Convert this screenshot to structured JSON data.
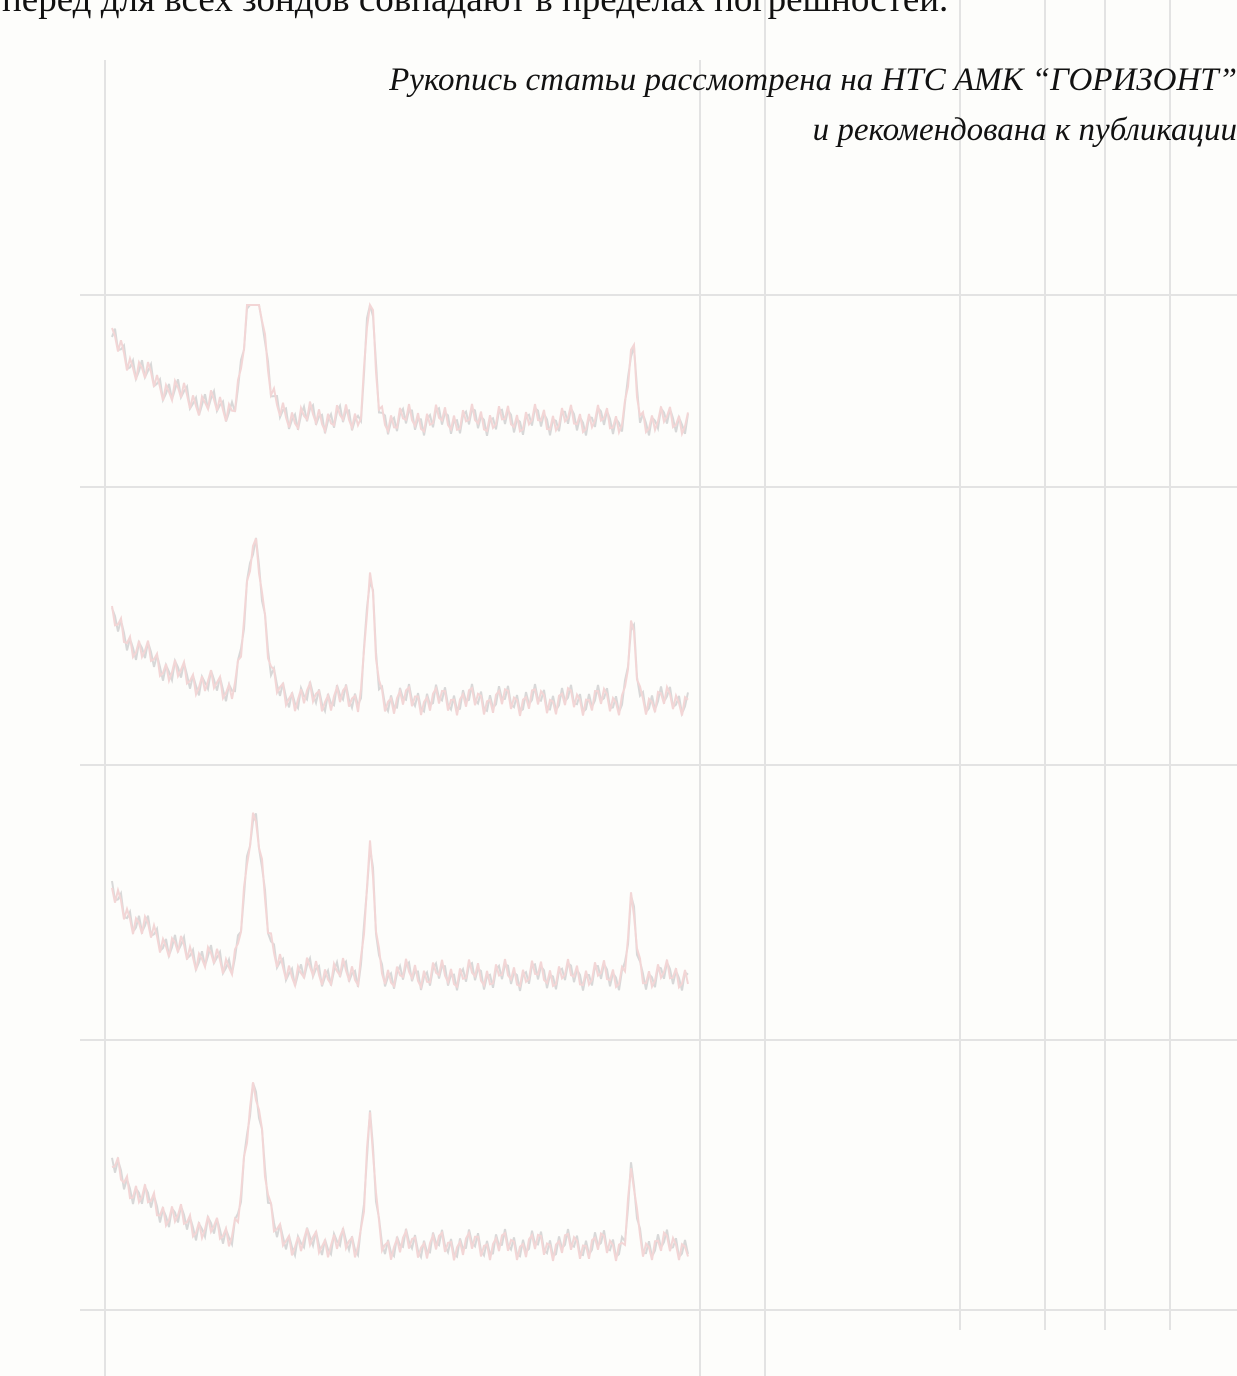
{
  "body": {
    "top_line": "перед для всех зондов совпадают в пределах погрешностей.",
    "note_line_1": "Рукопись статьи рассмотрена на НТС АМК “ГОРИЗОНТ”",
    "note_line_2": "и рекомендована к публикации"
  }
}
